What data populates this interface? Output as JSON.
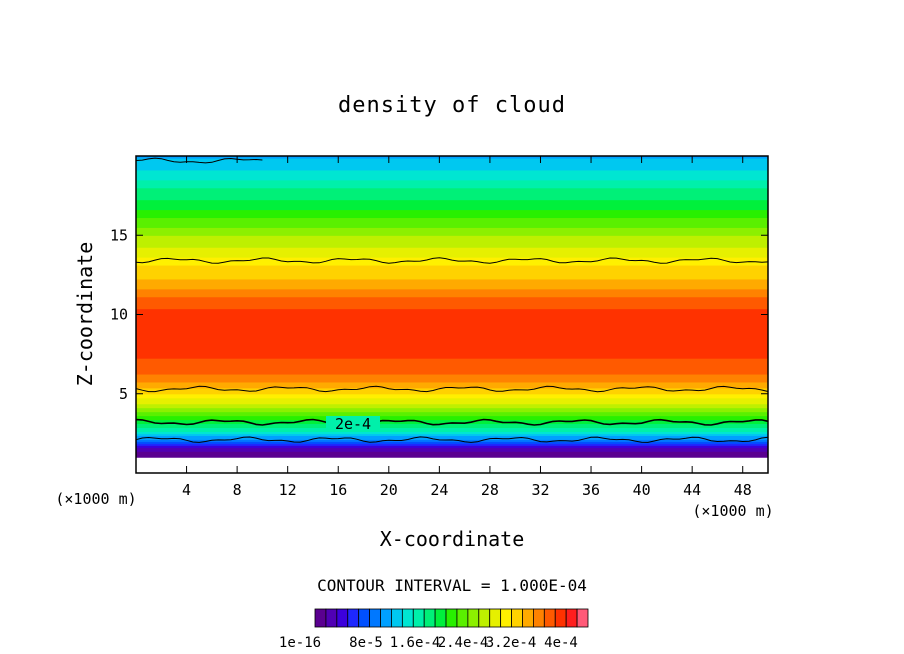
{
  "chart_data": {
    "type": "heatmap",
    "title": "density of cloud",
    "xlabel": "X-coordinate",
    "ylabel": "Z-coordinate",
    "x_unit": "(×1000 m)",
    "y_unit": "(×1000 m)",
    "xlim": [
      0,
      50
    ],
    "ylim": [
      0,
      20
    ],
    "x_ticks": [
      4,
      8,
      12,
      16,
      20,
      24,
      28,
      32,
      36,
      40,
      44,
      48
    ],
    "y_ticks": [
      5,
      10,
      15
    ],
    "contour_interval_text": "CONTOUR INTERVAL = 1.000E-04",
    "contour_label": "2e-4",
    "colorbar": {
      "labels": [
        "1e-16",
        "8e-5",
        "1.6e-4",
        "2.4e-4",
        "3.2e-4",
        "4e-4"
      ],
      "label_values": [
        0,
        8e-05,
        0.00016,
        0.00024,
        0.00032,
        0.0004
      ],
      "levels": 25,
      "colors": [
        "#5a0090",
        "#5000b4",
        "#3c00dc",
        "#1e28ff",
        "#0050ff",
        "#0078ff",
        "#00a0ff",
        "#00c8f0",
        "#00e6d2",
        "#00f0aa",
        "#00f078",
        "#00f03c",
        "#28f000",
        "#5af000",
        "#8cf000",
        "#bef000",
        "#e6f000",
        "#fff000",
        "#ffd200",
        "#ffaa00",
        "#ff8200",
        "#ff5a00",
        "#ff3200",
        "#ff1e1e",
        "#ff5a78"
      ]
    },
    "profile": {
      "z": [
        0.5,
        1,
        1.5,
        2,
        2.5,
        3,
        3.5,
        4,
        5,
        6,
        7,
        8,
        9,
        10,
        11,
        12,
        13,
        14,
        15,
        16,
        17,
        18,
        19,
        20
      ],
      "density": [
        0,
        0,
        2e-05,
        8e-05,
        0.00013,
        0.00017,
        0.0002,
        0.00023,
        0.00029,
        0.00033,
        0.00035,
        0.00036,
        0.00036,
        0.00036,
        0.00034,
        0.00031,
        0.00029,
        0.00026,
        0.00024,
        0.00021,
        0.00018,
        0.00016,
        0.00013,
        0.00011
      ]
    },
    "contour_lines": [
      {
        "level": 0.0001,
        "z": 2.1
      },
      {
        "level": 0.0002,
        "z": 3.2
      },
      {
        "level": 0.0003,
        "z": 5.3
      },
      {
        "level": 0.0003,
        "z": 13.4
      },
      {
        "level": 0.0001,
        "z": 19.7
      }
    ]
  }
}
